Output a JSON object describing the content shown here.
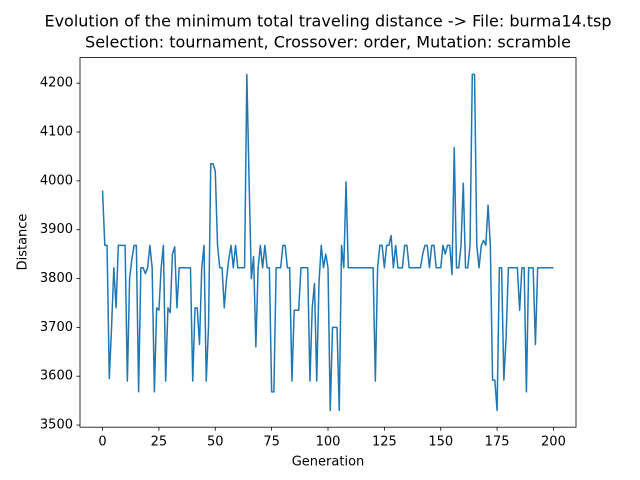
{
  "chart_data": {
    "type": "line",
    "title": "Evolution of the minimum total traveling distance -> File: burma14.tsp",
    "subtitle": "Selection: tournament, Crossover: order, Mutation: scramble",
    "x_label": "Generation",
    "y_label": "Distance",
    "x": [
      0,
      1,
      2,
      3,
      4,
      5,
      6,
      7,
      8,
      9,
      10,
      11,
      12,
      13,
      14,
      15,
      16,
      17,
      18,
      19,
      20,
      21,
      22,
      23,
      24,
      25,
      26,
      27,
      28,
      29,
      30,
      31,
      32,
      33,
      34,
      35,
      36,
      37,
      38,
      39,
      40,
      41,
      42,
      43,
      44,
      45,
      46,
      47,
      48,
      49,
      50,
      51,
      52,
      53,
      54,
      55,
      56,
      57,
      58,
      59,
      60,
      61,
      62,
      63,
      64,
      65,
      66,
      67,
      68,
      69,
      70,
      71,
      72,
      73,
      74,
      75,
      76,
      77,
      78,
      79,
      80,
      81,
      82,
      83,
      84,
      85,
      86,
      87,
      88,
      89,
      90,
      91,
      92,
      93,
      94,
      95,
      96,
      97,
      98,
      99,
      100,
      101,
      102,
      103,
      104,
      105,
      106,
      107,
      108,
      109,
      110,
      111,
      112,
      113,
      114,
      115,
      116,
      117,
      118,
      119,
      120,
      121,
      122,
      123,
      124,
      125,
      126,
      127,
      128,
      129,
      130,
      131,
      132,
      133,
      134,
      135,
      136,
      137,
      138,
      139,
      140,
      141,
      142,
      143,
      144,
      145,
      146,
      147,
      148,
      149,
      150,
      151,
      152,
      153,
      154,
      155,
      156,
      157,
      158,
      159,
      160,
      161,
      162,
      163,
      164,
      165,
      166,
      167,
      168,
      169,
      170,
      171,
      172,
      173,
      174,
      175,
      176,
      177,
      178,
      179,
      180,
      181,
      182,
      183,
      184,
      185,
      186,
      187,
      188,
      189,
      190,
      191,
      192,
      193,
      194,
      195,
      196,
      197,
      198,
      199,
      200
    ],
    "series": [
      {
        "name": "Distance",
        "color": "#1f77b4",
        "values": [
          3980,
          3868,
          3868,
          3595,
          3700,
          3822,
          3740,
          3868,
          3868,
          3868,
          3868,
          3590,
          3800,
          3840,
          3868,
          3868,
          3568,
          3822,
          3822,
          3810,
          3822,
          3868,
          3822,
          3568,
          3740,
          3735,
          3822,
          3868,
          3590,
          3740,
          3730,
          3850,
          3865,
          3740,
          3822,
          3822,
          3822,
          3822,
          3822,
          3822,
          3590,
          3740,
          3740,
          3665,
          3822,
          3868,
          3590,
          3700,
          4035,
          4035,
          4020,
          3868,
          3822,
          3822,
          3740,
          3800,
          3840,
          3868,
          3822,
          3868,
          3822,
          3822,
          3822,
          3822,
          4218,
          4000,
          3800,
          3845,
          3660,
          3822,
          3868,
          3822,
          3868,
          3822,
          3822,
          3568,
          3568,
          3822,
          3822,
          3822,
          3868,
          3868,
          3822,
          3822,
          3590,
          3735,
          3735,
          3735,
          3822,
          3822,
          3822,
          3822,
          3590,
          3740,
          3790,
          3590,
          3790,
          3868,
          3822,
          3850,
          3822,
          3530,
          3700,
          3700,
          3700,
          3530,
          3868,
          3822,
          3998,
          3822,
          3822,
          3822,
          3822,
          3822,
          3822,
          3822,
          3822,
          3822,
          3822,
          3822,
          3822,
          3590,
          3822,
          3868,
          3868,
          3822,
          3868,
          3868,
          3888,
          3822,
          3868,
          3822,
          3822,
          3822,
          3868,
          3868,
          3822,
          3822,
          3822,
          3822,
          3822,
          3822,
          3850,
          3868,
          3868,
          3822,
          3868,
          3868,
          3822,
          3822,
          3822,
          3868,
          3850,
          3868,
          3868,
          3808,
          4068,
          3822,
          3822,
          3868,
          3995,
          3822,
          3822,
          3868,
          4218,
          4218,
          3868,
          3822,
          3868,
          3878,
          3868,
          3950,
          3868,
          3592,
          3592,
          3530,
          3822,
          3822,
          3592,
          3680,
          3822,
          3822,
          3822,
          3822,
          3822,
          3735,
          3822,
          3822,
          3568,
          3822,
          3822,
          3822,
          3665,
          3822,
          3822,
          3822,
          3822,
          3822,
          3822,
          3822,
          3822
        ]
      }
    ],
    "xlim": [
      -10,
      210
    ],
    "ylim": [
      3495.6,
      4252.4
    ],
    "xticks": [
      0,
      25,
      50,
      75,
      100,
      125,
      150,
      175,
      200
    ],
    "yticks": [
      3500,
      3600,
      3700,
      3800,
      3900,
      4000,
      4100,
      4200
    ],
    "grid": false
  }
}
